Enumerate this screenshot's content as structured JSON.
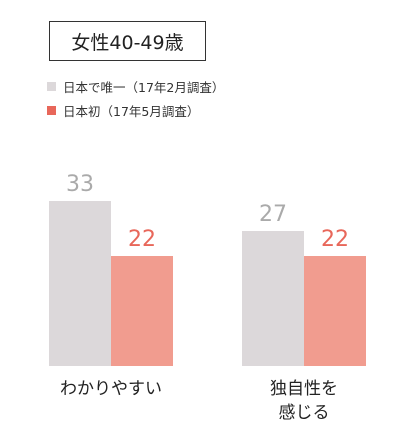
{
  "title": "女性40-49歳",
  "colors": {
    "series_a": "#dcd8da",
    "series_b": "#f19c8f",
    "label_a": "#aaaaaa",
    "label_b": "#e8675a"
  },
  "chart_data": {
    "type": "bar",
    "categories": [
      "わかりやすい",
      "独自性を\n感じる"
    ],
    "series": [
      {
        "name": "日本で唯一（17年2月調査）",
        "values": [
          33,
          27
        ]
      },
      {
        "name": "日本初（17年5月調査）",
        "values": [
          22,
          22
        ]
      }
    ],
    "ylim": [
      0,
      40
    ],
    "legend_position": "top-left",
    "grid": false,
    "data_labels": true
  }
}
